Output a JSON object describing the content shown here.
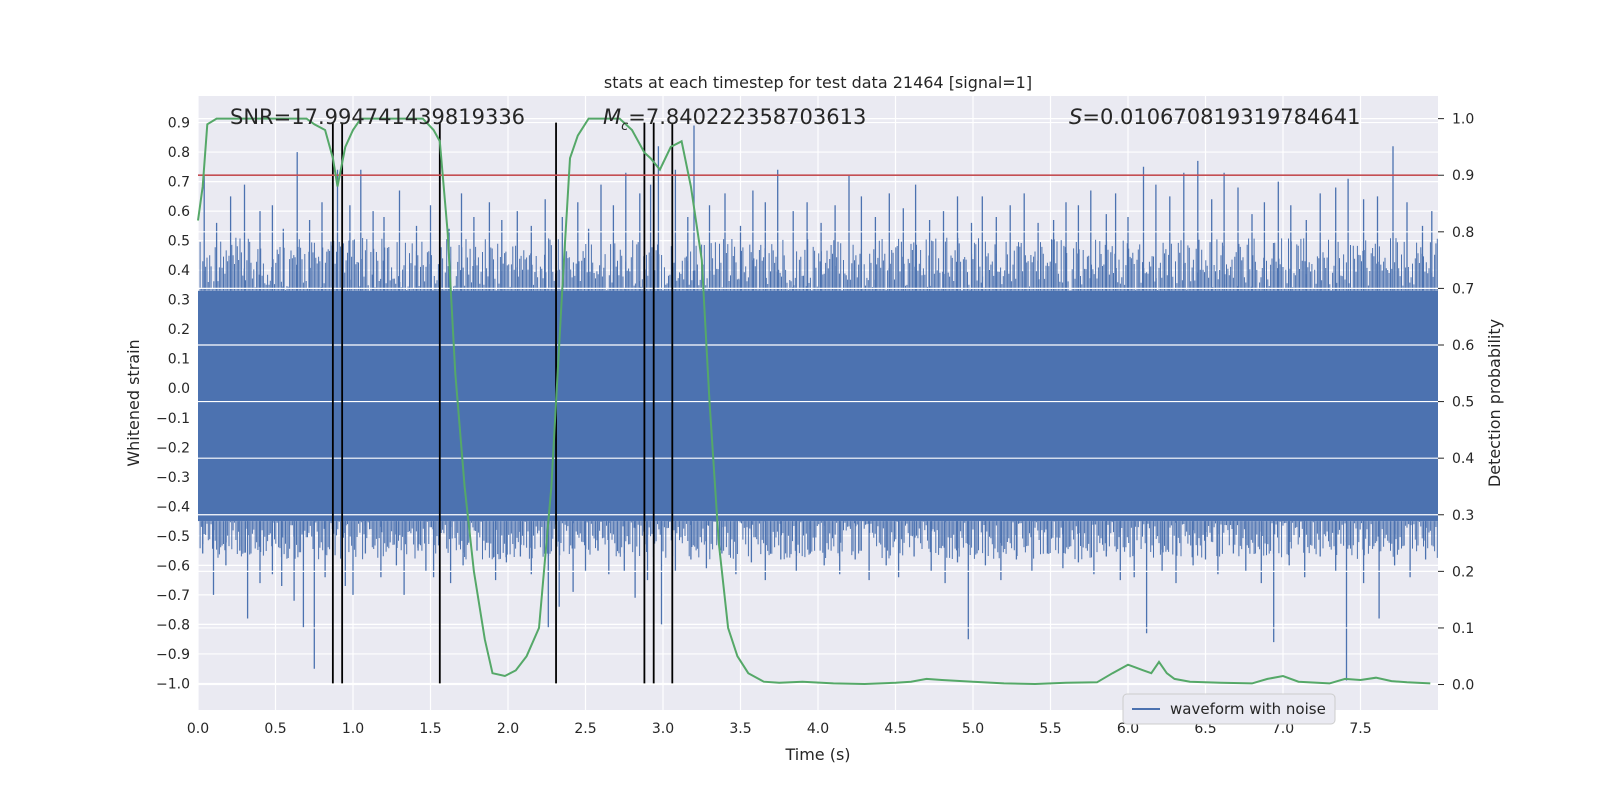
{
  "chart_data": {
    "type": "line",
    "title": "stats at each timestep for test data 21464 [signal=1]",
    "xlabel": "Time (s)",
    "ylabel": "Whitened strain",
    "y2label": "Detection probability",
    "xlim": [
      0,
      8
    ],
    "ylim": [
      -1.09,
      0.99
    ],
    "y2lim": [
      -0.045,
      1.04
    ],
    "x_ticks": [
      "0.0",
      "0.5",
      "1.0",
      "1.5",
      "2.0",
      "2.5",
      "3.0",
      "3.5",
      "4.0",
      "4.5",
      "5.0",
      "5.5",
      "6.0",
      "6.5",
      "7.0",
      "7.5"
    ],
    "y_ticks": [
      "0.9",
      "0.8",
      "0.7",
      "0.6",
      "0.5",
      "0.4",
      "0.3",
      "0.2",
      "0.1",
      "0.0",
      "-0.1",
      "-0.2",
      "-0.3",
      "-0.4",
      "-0.5",
      "-0.6",
      "-0.7",
      "-0.8",
      "-0.9",
      "-1.0"
    ],
    "y2_ticks": [
      "1.0",
      "0.9",
      "0.8",
      "0.7",
      "0.6",
      "0.5",
      "0.4",
      "0.3",
      "0.2",
      "0.1",
      "0.0"
    ],
    "annotations": {
      "snr": "SNR=17.994741439819336",
      "mc_symbol": "M",
      "mc_sub": "c",
      "mc_value": "=7.840222358703613",
      "s_symbol": "S",
      "s_value": "=0.010670819319784641"
    },
    "legend": {
      "label": "waveform with noise",
      "position": "lower-right"
    },
    "threshold": {
      "y2": 0.9,
      "color": "#c44e52"
    },
    "vertical_lines_x": [
      0.87,
      0.93,
      1.56,
      2.31,
      2.88,
      2.94,
      3.06
    ],
    "waveform": {
      "name": "waveform with noise",
      "color": "#4c72b0",
      "dense_band": [
        -0.45,
        0.33
      ],
      "positive_peaks": [
        [
          0.04,
          0.72
        ],
        [
          0.12,
          0.56
        ],
        [
          0.21,
          0.65
        ],
        [
          0.3,
          0.69
        ],
        [
          0.4,
          0.6
        ],
        [
          0.48,
          0.62
        ],
        [
          0.55,
          0.54
        ],
        [
          0.64,
          0.8
        ],
        [
          0.72,
          0.57
        ],
        [
          0.8,
          0.63
        ],
        [
          0.9,
          0.74
        ],
        [
          0.98,
          0.62
        ],
        [
          1.05,
          0.74
        ],
        [
          1.13,
          0.6
        ],
        [
          1.2,
          0.58
        ],
        [
          1.3,
          0.67
        ],
        [
          1.41,
          0.55
        ],
        [
          1.5,
          0.62
        ],
        [
          1.62,
          0.54
        ],
        [
          1.7,
          0.66
        ],
        [
          1.78,
          0.58
        ],
        [
          1.88,
          0.63
        ],
        [
          1.96,
          0.57
        ],
        [
          2.06,
          0.6
        ],
        [
          2.15,
          0.55
        ],
        [
          2.24,
          0.64
        ],
        [
          2.35,
          0.58
        ],
        [
          2.45,
          0.63
        ],
        [
          2.52,
          0.54
        ],
        [
          2.6,
          0.69
        ],
        [
          2.68,
          0.62
        ],
        [
          2.76,
          0.73
        ],
        [
          2.85,
          0.66
        ],
        [
          2.92,
          0.69
        ],
        [
          2.97,
          0.82
        ],
        [
          3.08,
          0.74
        ],
        [
          3.16,
          0.58
        ],
        [
          3.2,
          0.89
        ],
        [
          3.3,
          0.62
        ],
        [
          3.4,
          0.66
        ],
        [
          3.5,
          0.55
        ],
        [
          3.58,
          0.67
        ],
        [
          3.66,
          0.63
        ],
        [
          3.74,
          0.74
        ],
        [
          3.84,
          0.6
        ],
        [
          3.93,
          0.63
        ],
        [
          4.02,
          0.56
        ],
        [
          4.11,
          0.62
        ],
        [
          4.2,
          0.72
        ],
        [
          4.28,
          0.65
        ],
        [
          4.37,
          0.58
        ],
        [
          4.46,
          0.66
        ],
        [
          4.55,
          0.61
        ],
        [
          4.63,
          0.69
        ],
        [
          4.72,
          0.57
        ],
        [
          4.81,
          0.6
        ],
        [
          4.9,
          0.65
        ],
        [
          4.99,
          0.56
        ],
        [
          5.06,
          0.65
        ],
        [
          5.15,
          0.58
        ],
        [
          5.24,
          0.62
        ],
        [
          5.33,
          0.66
        ],
        [
          5.42,
          0.56
        ],
        [
          5.52,
          0.57
        ],
        [
          5.6,
          0.63
        ],
        [
          5.68,
          0.62
        ],
        [
          5.76,
          0.67
        ],
        [
          5.86,
          0.59
        ],
        [
          5.92,
          0.66
        ],
        [
          6.0,
          0.58
        ],
        [
          6.1,
          0.75
        ],
        [
          6.18,
          0.69
        ],
        [
          6.27,
          0.65
        ],
        [
          6.36,
          0.73
        ],
        [
          6.45,
          0.77
        ],
        [
          6.54,
          0.64
        ],
        [
          6.62,
          0.73
        ],
        [
          6.71,
          0.68
        ],
        [
          6.8,
          0.59
        ],
        [
          6.88,
          0.63
        ],
        [
          6.97,
          0.7
        ],
        [
          7.05,
          0.62
        ],
        [
          7.15,
          0.57
        ],
        [
          7.24,
          0.66
        ],
        [
          7.34,
          0.68
        ],
        [
          7.42,
          0.71
        ],
        [
          7.52,
          0.64
        ],
        [
          7.61,
          0.65
        ],
        [
          7.71,
          0.82
        ],
        [
          7.8,
          0.63
        ],
        [
          7.9,
          0.55
        ],
        [
          7.96,
          0.6
        ]
      ],
      "negative_peaks": [
        [
          0.03,
          -0.56
        ],
        [
          0.1,
          -0.7
        ],
        [
          0.18,
          -0.6
        ],
        [
          0.27,
          -0.55
        ],
        [
          0.32,
          -0.78
        ],
        [
          0.4,
          -0.66
        ],
        [
          0.48,
          -0.63
        ],
        [
          0.54,
          -0.67
        ],
        [
          0.62,
          -0.72
        ],
        [
          0.68,
          -0.81
        ],
        [
          0.75,
          -0.95
        ],
        [
          0.82,
          -0.64
        ],
        [
          0.95,
          -0.67
        ],
        [
          1.0,
          -0.7
        ],
        [
          1.08,
          -0.56
        ],
        [
          1.18,
          -0.64
        ],
        [
          1.28,
          -0.6
        ],
        [
          1.33,
          -0.7
        ],
        [
          1.42,
          -0.55
        ],
        [
          1.47,
          -0.62
        ],
        [
          1.52,
          -0.64
        ],
        [
          1.63,
          -0.66
        ],
        [
          1.71,
          -0.6
        ],
        [
          1.8,
          -0.55
        ],
        [
          1.92,
          -0.65
        ],
        [
          1.99,
          -0.59
        ],
        [
          2.08,
          -0.57
        ],
        [
          2.15,
          -0.63
        ],
        [
          2.26,
          -0.81
        ],
        [
          2.33,
          -0.74
        ],
        [
          2.42,
          -0.69
        ],
        [
          2.5,
          -0.62
        ],
        [
          2.58,
          -0.55
        ],
        [
          2.65,
          -0.63
        ],
        [
          2.75,
          -0.62
        ],
        [
          2.82,
          -0.71
        ],
        [
          2.9,
          -0.65
        ],
        [
          2.99,
          -0.8
        ],
        [
          3.08,
          -0.62
        ],
        [
          3.18,
          -0.58
        ],
        [
          3.28,
          -0.61
        ],
        [
          3.38,
          -0.56
        ],
        [
          3.47,
          -0.63
        ],
        [
          3.57,
          -0.59
        ],
        [
          3.66,
          -0.65
        ],
        [
          3.76,
          -0.58
        ],
        [
          3.86,
          -0.62
        ],
        [
          3.95,
          -0.56
        ],
        [
          4.04,
          -0.6
        ],
        [
          4.14,
          -0.63
        ],
        [
          4.24,
          -0.58
        ],
        [
          4.33,
          -0.65
        ],
        [
          4.44,
          -0.6
        ],
        [
          4.52,
          -0.64
        ],
        [
          4.62,
          -0.57
        ],
        [
          4.73,
          -0.62
        ],
        [
          4.82,
          -0.66
        ],
        [
          4.9,
          -0.59
        ],
        [
          4.97,
          -0.85
        ],
        [
          5.08,
          -0.6
        ],
        [
          5.18,
          -0.65
        ],
        [
          5.28,
          -0.58
        ],
        [
          5.38,
          -0.62
        ],
        [
          5.48,
          -0.56
        ],
        [
          5.58,
          -0.61
        ],
        [
          5.68,
          -0.59
        ],
        [
          5.78,
          -0.63
        ],
        [
          5.86,
          -0.57
        ],
        [
          5.95,
          -0.65
        ],
        [
          6.04,
          -0.64
        ],
        [
          6.12,
          -0.83
        ],
        [
          6.22,
          -0.62
        ],
        [
          6.31,
          -0.66
        ],
        [
          6.42,
          -0.6
        ],
        [
          6.5,
          -0.58
        ],
        [
          6.58,
          -0.63
        ],
        [
          6.68,
          -0.56
        ],
        [
          6.76,
          -0.62
        ],
        [
          6.86,
          -0.66
        ],
        [
          6.94,
          -0.86
        ],
        [
          7.04,
          -0.6
        ],
        [
          7.14,
          -0.64
        ],
        [
          7.24,
          -0.57
        ],
        [
          7.34,
          -0.62
        ],
        [
          7.41,
          -0.99
        ],
        [
          7.52,
          -0.66
        ],
        [
          7.62,
          -0.78
        ],
        [
          7.72,
          -0.6
        ],
        [
          7.82,
          -0.64
        ],
        [
          7.92,
          -0.58
        ]
      ]
    },
    "probability": {
      "name": "detection probability",
      "color": "#55a868",
      "x": [
        0.0,
        0.03,
        0.06,
        0.12,
        0.2,
        0.4,
        0.6,
        0.7,
        0.75,
        0.82,
        0.87,
        0.9,
        0.95,
        1.0,
        1.05,
        1.1,
        1.2,
        1.3,
        1.45,
        1.52,
        1.56,
        1.61,
        1.66,
        1.72,
        1.78,
        1.85,
        1.9,
        1.98,
        2.05,
        2.12,
        2.2,
        2.28,
        2.35,
        2.4,
        2.45,
        2.52,
        2.62,
        2.72,
        2.8,
        2.88,
        2.92,
        2.98,
        3.05,
        3.12,
        3.18,
        3.25,
        3.3,
        3.36,
        3.42,
        3.48,
        3.55,
        3.65,
        3.75,
        3.9,
        4.1,
        4.3,
        4.5,
        4.6,
        4.7,
        4.8,
        5.0,
        5.2,
        5.4,
        5.6,
        5.8,
        5.9,
        6.0,
        6.05,
        6.1,
        6.15,
        6.2,
        6.25,
        6.3,
        6.4,
        6.6,
        6.8,
        6.9,
        7.0,
        7.1,
        7.3,
        7.4,
        7.5,
        7.6,
        7.7,
        7.8,
        7.95
      ],
      "y": [
        0.82,
        0.88,
        0.99,
        1.0,
        1.0,
        1.0,
        1.0,
        1.0,
        0.99,
        0.98,
        0.93,
        0.88,
        0.95,
        0.98,
        1.0,
        1.0,
        1.0,
        1.0,
        1.0,
        0.98,
        0.96,
        0.8,
        0.55,
        0.35,
        0.2,
        0.08,
        0.02,
        0.015,
        0.025,
        0.05,
        0.1,
        0.35,
        0.7,
        0.93,
        0.97,
        1.0,
        1.0,
        1.0,
        0.98,
        0.94,
        0.93,
        0.91,
        0.95,
        0.96,
        0.88,
        0.75,
        0.5,
        0.25,
        0.1,
        0.05,
        0.02,
        0.005,
        0.003,
        0.005,
        0.002,
        0.001,
        0.003,
        0.005,
        0.01,
        0.008,
        0.005,
        0.002,
        0.001,
        0.003,
        0.004,
        0.02,
        0.035,
        0.03,
        0.025,
        0.02,
        0.04,
        0.02,
        0.01,
        0.005,
        0.003,
        0.002,
        0.01,
        0.015,
        0.005,
        0.002,
        0.01,
        0.008,
        0.012,
        0.006,
        0.004,
        0.002
      ]
    },
    "colors": {
      "plot_background": "#eaeaf2",
      "grid": "#ffffff",
      "vertical_line": "#000000",
      "legend_background": "#eaeaf2"
    }
  }
}
